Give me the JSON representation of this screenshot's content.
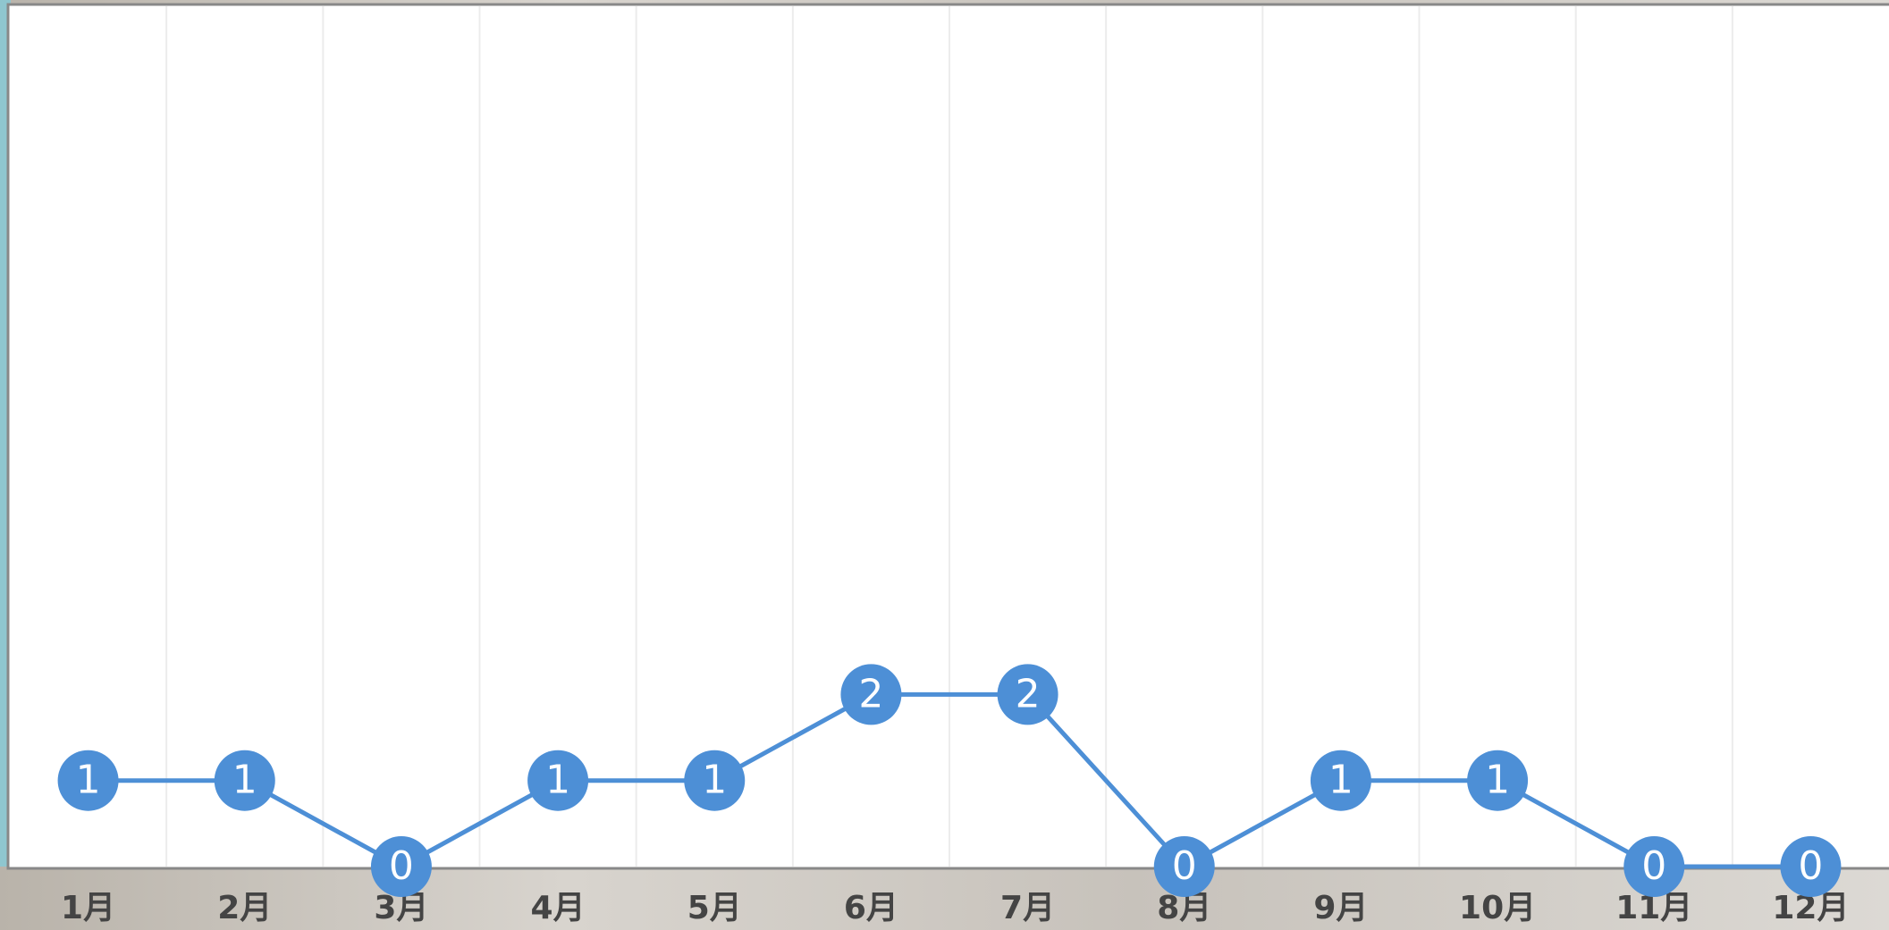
{
  "chart_data": {
    "type": "line",
    "categories": [
      "1月",
      "2月",
      "3月",
      "4月",
      "5月",
      "6月",
      "7月",
      "8月",
      "9月",
      "10月",
      "11月",
      "12月"
    ],
    "series": [
      {
        "color": "#4d8fd6",
        "values": [
          1,
          1,
          0,
          1,
          1,
          2,
          2,
          0,
          1,
          1,
          0,
          0
        ]
      }
    ],
    "ylim": [
      0,
      10
    ],
    "grid": true
  }
}
